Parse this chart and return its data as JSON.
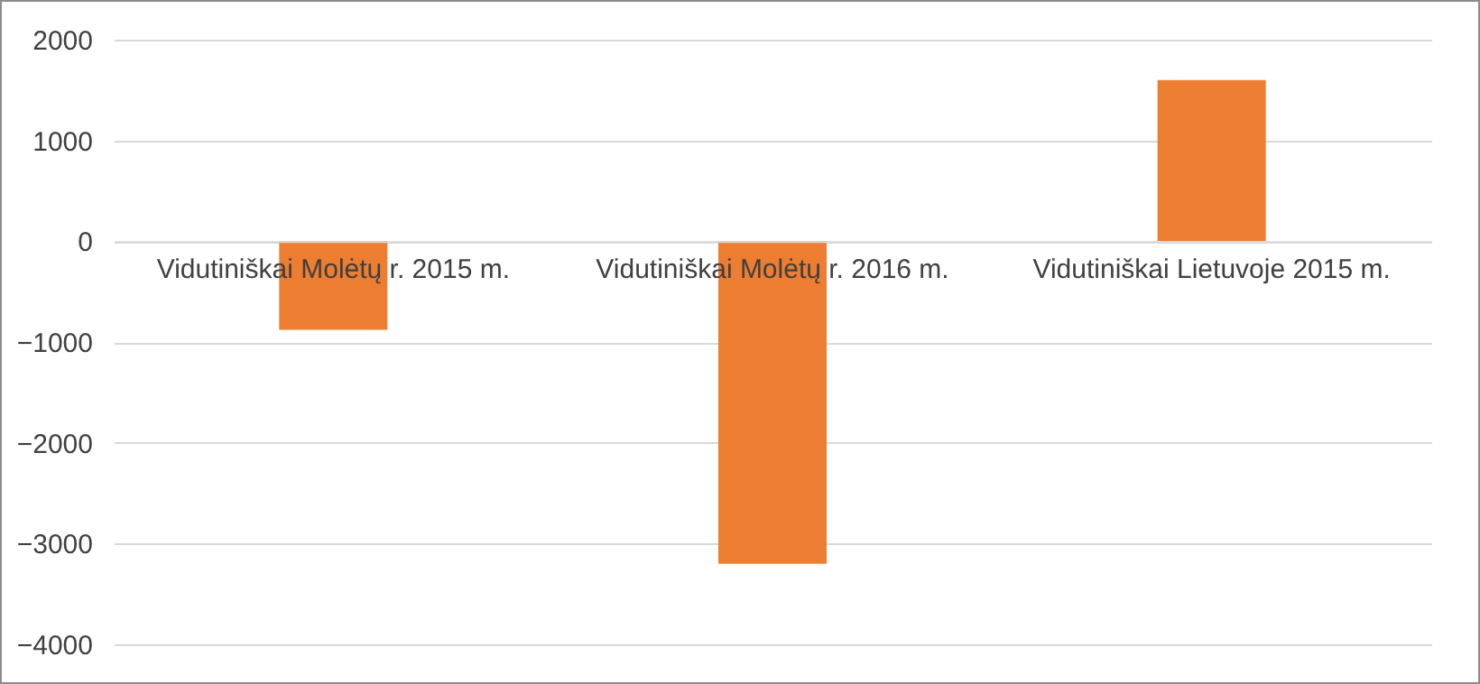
{
  "chart_data": {
    "type": "bar",
    "categories": [
      "Vidutiniškai Molėtų r. 2015 m.",
      "Vidutiniškai Molėtų r. 2016 m.",
      "Vidutiniškai Lietuvoje 2015 m."
    ],
    "values": [
      -880,
      -3200,
      1600
    ],
    "color": "#ed7d31",
    "ylim": [
      -4000,
      2000
    ],
    "yticks": [
      -4000,
      -3000,
      -2000,
      -1000,
      0,
      1000,
      2000
    ],
    "grid": "y"
  }
}
